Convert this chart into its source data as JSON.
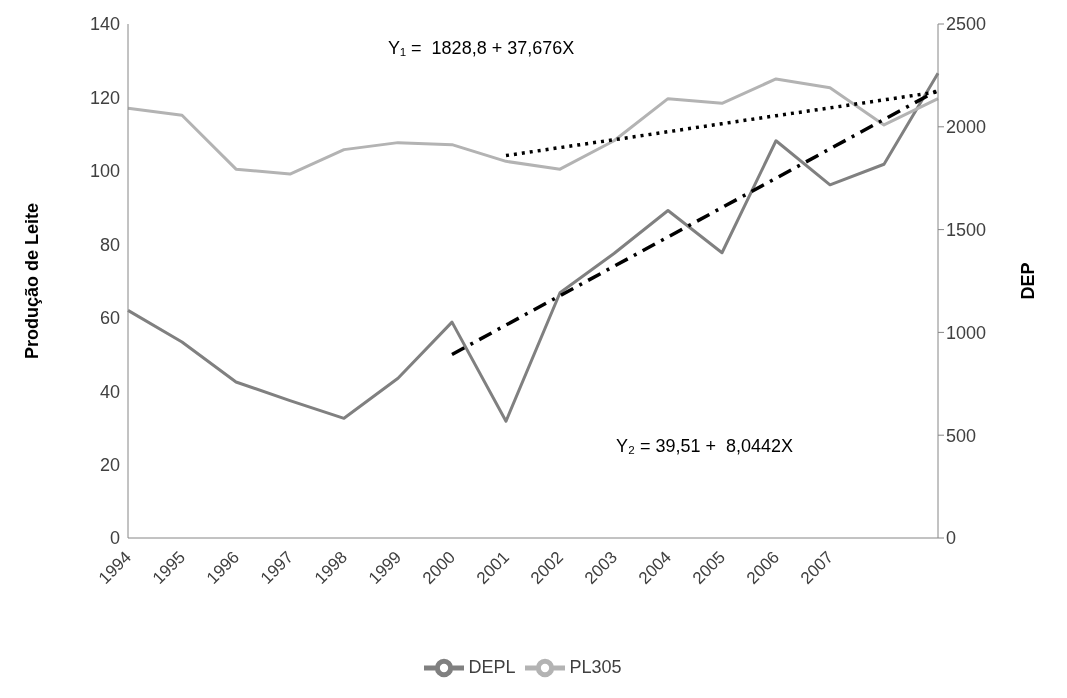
{
  "chart_data": {
    "type": "line",
    "ylabel": "Produção de Leite",
    "y2label": "DEP",
    "categories": [
      "1994",
      "1995",
      "1996",
      "1997",
      "1998",
      "1999",
      "2000",
      "2001",
      "2002",
      "2003",
      "2004",
      "2005",
      "2006",
      "2007",
      null,
      null
    ],
    "series": [
      {
        "name": "DEPL",
        "color": "#808080",
        "values": [
          62,
          53.4,
          42.5,
          37.4,
          32.6,
          43.5,
          58.8,
          31.8,
          66.8,
          77.5,
          89.2,
          77.7,
          108.2,
          96.2,
          101.8,
          126.6
        ]
      },
      {
        "name": "PL305",
        "color": "#b3b3b3",
        "axis": "y2",
        "values": [
          2090,
          2056,
          1794,
          1770,
          1889,
          1923,
          1913,
          1832,
          1794,
          1932,
          2137,
          2114,
          2233,
          2190,
          2009,
          2137
        ]
      },
      {
        "color": "#000000",
        "axis": "y2",
        "line_style": "dotted",
        "values": [
          null,
          null,
          null,
          null,
          null,
          null,
          null,
          1860,
          1899,
          1937,
          1976,
          2015,
          2054,
          2092,
          2131,
          2170
        ]
      },
      {
        "color": "#000000",
        "line_style": "dashed",
        "values": [
          null,
          null,
          null,
          null,
          null,
          null,
          50,
          58,
          66,
          74,
          82,
          90,
          98,
          106,
          114,
          122
        ]
      }
    ],
    "ylim": [
      0,
      140
    ],
    "yticks": [
      0,
      20,
      40,
      60,
      80,
      100,
      120,
      140
    ],
    "y2lim": [
      0,
      2500
    ],
    "y2ticks": [
      0,
      500,
      1000,
      1500,
      2000,
      2500
    ],
    "annotations": [
      "Y₁ =  1828,8 + 37,676X",
      "Y₂ = 39,51 +  8,0442X"
    ],
    "grid": false,
    "legend": "bottom",
    "marker": "none",
    "line_style": "solid"
  }
}
